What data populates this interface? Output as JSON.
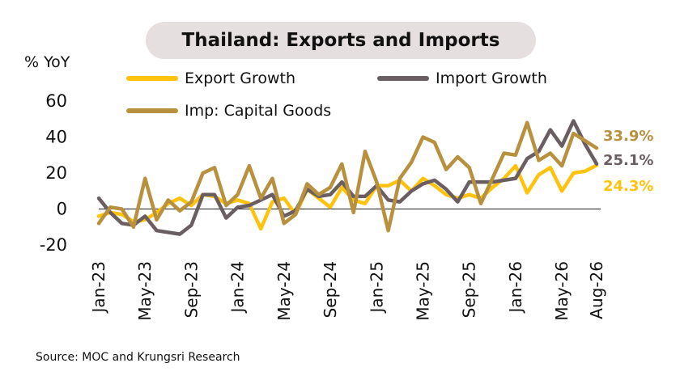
{
  "title": "Thailand: Exports and Imports",
  "unit_label": "% YoY",
  "source": "Source: MOC and Krungsri Research",
  "colors": {
    "export": "#FFC20E",
    "import": "#6B5E62",
    "capital": "#B8913F",
    "title_bg": "#E5DFDF"
  },
  "chart_data": {
    "type": "line",
    "x": [
      "Jan-23",
      "Feb-23",
      "Mar-23",
      "Apr-23",
      "May-23",
      "Jun-23",
      "Jul-23",
      "Aug-23",
      "Sep-23",
      "Oct-23",
      "Nov-23",
      "Dec-23",
      "Jan-24",
      "Feb-24",
      "Mar-24",
      "Apr-24",
      "May-24",
      "Jun-24",
      "Jul-24",
      "Aug-24",
      "Sep-24",
      "Oct-24",
      "Nov-24",
      "Dec-24",
      "Jan-25",
      "Feb-25",
      "Mar-25",
      "Apr-25",
      "May-25",
      "Jun-25",
      "Jul-25",
      "Aug-25",
      "Sep-25",
      "Oct-25",
      "Nov-25",
      "Dec-25",
      "Jan-26",
      "Feb-26",
      "Mar-26",
      "Apr-26",
      "May-26",
      "Jun-26",
      "Jul-26",
      "Aug-26"
    ],
    "x_tick_labels": [
      "Jan-23",
      "May-23",
      "Sep-23",
      "Jan-24",
      "May-24",
      "Sep-24",
      "Jan-25",
      "May-25",
      "Sep-25",
      "Jan-26",
      "May-26",
      "Aug-26"
    ],
    "ylim": [
      -20,
      60
    ],
    "y_ticks": [
      "-20",
      "0",
      "20",
      "40",
      "60"
    ],
    "grid": false,
    "series": [
      {
        "name": "Export Growth",
        "color": "#FFC20E",
        "values": [
          -4,
          -2,
          -3,
          -7,
          -6,
          -2,
          3,
          6,
          2,
          8,
          7,
          3,
          5,
          3,
          -11,
          4,
          6,
          -3,
          11,
          6,
          1,
          12,
          5,
          3,
          13,
          13,
          16,
          10,
          17,
          13,
          8,
          6,
          8,
          6,
          12,
          17,
          24,
          9,
          19,
          23,
          10,
          20,
          21,
          24.3
        ],
        "end_label": "24.3%"
      },
      {
        "name": "Import Growth",
        "color": "#6B5E62",
        "values": [
          6,
          -2,
          -8,
          -9,
          -4,
          -12,
          -13,
          -14,
          -9,
          8,
          8,
          -5,
          1,
          2,
          5,
          8,
          -4,
          -1,
          11,
          7,
          8,
          15,
          7,
          7,
          13,
          5,
          4,
          10,
          14,
          16,
          11,
          4,
          15,
          15,
          15,
          16,
          17,
          28,
          32,
          44,
          35,
          49,
          36,
          25.1
        ],
        "end_label": "25.1%"
      },
      {
        "name": "Imp: Capital Goods",
        "color": "#B8913F",
        "values": [
          -8,
          1,
          0,
          -10,
          17,
          -6,
          5,
          -1,
          4,
          20,
          23,
          2,
          8,
          24,
          6,
          17,
          -8,
          -3,
          14,
          8,
          12,
          25,
          -2,
          32,
          15,
          -12,
          17,
          26,
          40,
          37,
          22,
          29,
          23,
          3,
          17,
          31,
          30,
          48,
          27,
          31,
          24,
          42,
          38,
          33.9
        ],
        "end_label": "33.9%"
      }
    ]
  }
}
